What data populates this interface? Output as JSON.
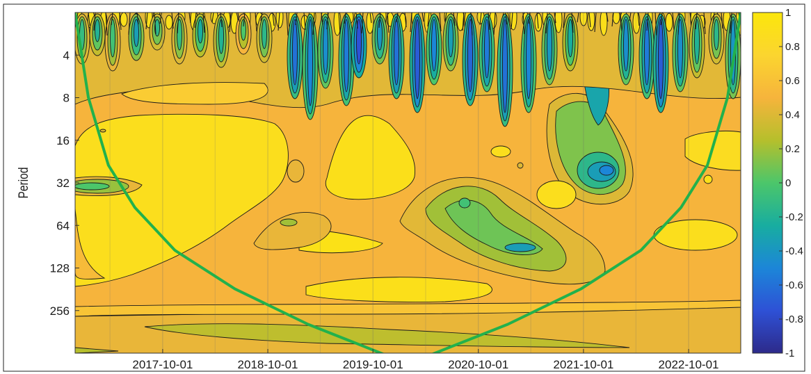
{
  "chart_data": {
    "type": "heatmap",
    "subtype": "wavelet-coherence",
    "title": "",
    "xlabel": "",
    "ylabel": "Period",
    "x_ticks": [
      "2017-10-01",
      "2018-10-01",
      "2019-10-01",
      "2020-10-01",
      "2021-10-01",
      "2022-10-01"
    ],
    "x_range": [
      "2016-12-01",
      "2023-03-31"
    ],
    "y_ticks": [
      "4",
      "8",
      "16",
      "32",
      "64",
      "128",
      "256"
    ],
    "y_scale": "log2",
    "y_range": [
      2,
      512
    ],
    "y_inverted": true,
    "grid": "vertical",
    "colorbar": {
      "ticks": [
        "1",
        "0.8",
        "0.6",
        "0.4",
        "0.2",
        "0",
        "-0.2",
        "-0.4",
        "-0.6",
        "-0.8",
        "-1"
      ],
      "range": [
        -1,
        1
      ],
      "colors": [
        "#2d2a8a",
        "#2e51d6",
        "#1c86d8",
        "#18ada0",
        "#4cc66a",
        "#b6bf2c",
        "#f6b43c",
        "#fbd52f",
        "#fbe60c"
      ]
    },
    "cone_of_influence": {
      "color": "#22b14c",
      "points": [
        [
          0.0,
          2
        ],
        [
          0.02,
          8
        ],
        [
          0.05,
          24
        ],
        [
          0.09,
          48
        ],
        [
          0.15,
          96
        ],
        [
          0.24,
          180
        ],
        [
          0.35,
          320
        ],
        [
          0.47,
          560
        ],
        [
          0.53,
          560
        ],
        [
          0.65,
          320
        ],
        [
          0.76,
          180
        ],
        [
          0.85,
          96
        ],
        [
          0.91,
          48
        ],
        [
          0.95,
          24
        ],
        [
          0.98,
          8
        ],
        [
          1.0,
          2
        ]
      ]
    },
    "regions": [
      {
        "level": 0.85,
        "label": "high coherence broad area, 2017-2019, periods 16-128"
      },
      {
        "level": 0.2,
        "label": "band 2020-10 to 2021-10, periods 32-100"
      },
      {
        "level": 0.0,
        "label": "strip near period 32, 2017-01 to 2017-06"
      },
      {
        "level": -0.3,
        "label": "fine-scale patches, periods 2-16 throughout"
      },
      {
        "level": 0.25,
        "label": "band near period 256-400, 2017-2021"
      }
    ]
  }
}
